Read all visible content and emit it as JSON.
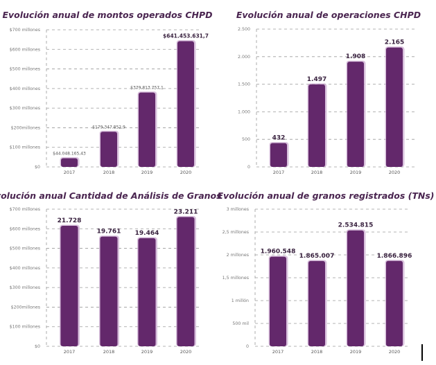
{
  "colors": {
    "bar": "#63286b",
    "bar_glow": "#c9a6cf",
    "grid": "#9a9a9a",
    "title": "#4a2550"
  },
  "chart_data": [
    {
      "type": "bar",
      "title": "Evolución anual de montos operados CHPD",
      "categories": [
        "2017",
        "2018",
        "2019",
        "2020"
      ],
      "values": [
        44048165.43,
        179347852.9,
        379813757.1,
        641453631.7
      ],
      "data_labels": [
        "$44.048.165,43",
        "$179.347.852,9",
        "$379.813.757,1",
        "$641.453.631,7"
      ],
      "ylim": [
        0,
        700000000
      ],
      "yticks": [
        0,
        100000000,
        200000000,
        300000000,
        400000000,
        500000000,
        600000000,
        700000000
      ],
      "ytick_labels": [
        "$0",
        "$100 millones",
        "$200millones",
        "$300 millones",
        "$400 millones",
        "$500 millones",
        "$600 millones",
        "$700 millones"
      ],
      "grid": true
    },
    {
      "type": "bar",
      "title": "Evolución anual de operaciones CHPD",
      "categories": [
        "2017",
        "2018",
        "2019",
        "2020"
      ],
      "values": [
        432,
        1497,
        1908,
        2165
      ],
      "data_labels": [
        "432",
        "1.497",
        "1.908",
        "2.165"
      ],
      "ylim": [
        0,
        2500
      ],
      "yticks": [
        0,
        500,
        1000,
        1500,
        2000,
        2500
      ],
      "ytick_labels": [
        "0",
        "500",
        "1.000",
        "1.500",
        "2.000",
        "2.500"
      ],
      "grid": true
    },
    {
      "type": "bar",
      "title": "Evolución anual Cantidad de Análisis de Granos",
      "categories": [
        "2017",
        "2018",
        "2019",
        "2020"
      ],
      "values": [
        21728,
        19761,
        19464,
        23211
      ],
      "plotted_axis_values": [
        615000000,
        560000000,
        552000000,
        660000000
      ],
      "data_labels": [
        "21.728",
        "19.761",
        "19.464",
        "23.211"
      ],
      "ylim": [
        0,
        700000000
      ],
      "yticks": [
        0,
        100000000,
        200000000,
        300000000,
        400000000,
        500000000,
        600000000,
        700000000
      ],
      "ytick_labels": [
        "$0",
        "$100 millones",
        "$200millones",
        "$300 millones",
        "$400 millones",
        "$500 millones",
        "$600 millones",
        "$700 millones"
      ],
      "grid": true
    },
    {
      "type": "bar",
      "title": "Evolución anual de granos registrados (TNs)",
      "categories": [
        "2017",
        "2018",
        "2019",
        "2020"
      ],
      "values": [
        1960548,
        1865007,
        2534815,
        1866896
      ],
      "data_labels": [
        "1.960.548",
        "1.865.007",
        "2.534.815",
        "1.866.896"
      ],
      "ylim": [
        0,
        3000000
      ],
      "yticks": [
        0,
        500000,
        1000000,
        1500000,
        2000000,
        2500000,
        3000000
      ],
      "ytick_labels": [
        "0",
        "500 mil",
        "1 millón",
        "1,5 millones",
        "2 millones",
        "2,5 millones",
        "3 millones"
      ],
      "grid": true
    }
  ]
}
